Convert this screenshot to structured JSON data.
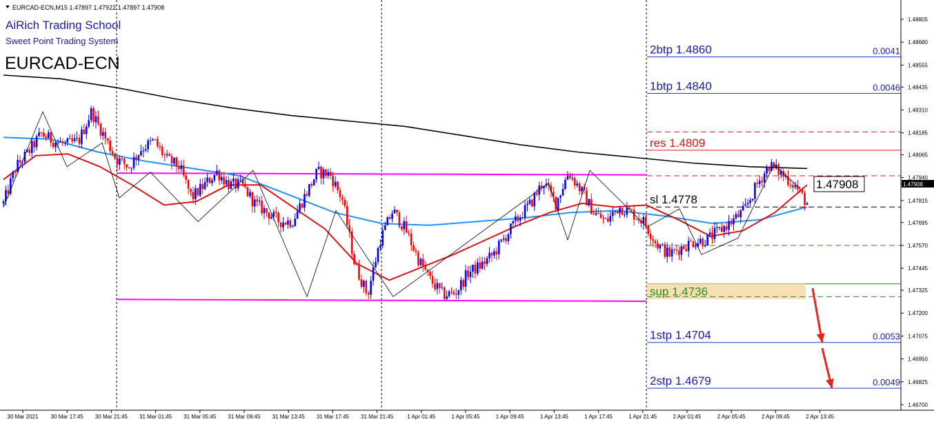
{
  "header": {
    "symbol_line": "EURCAD-ECN,M15  1.47897 1.47922 1.47897 1.47908",
    "school": "AiRich Trading School",
    "system": "Sweet Point Trading System",
    "instrument": "EURCAD-ECN"
  },
  "colors": {
    "candle_bull": "#0000ff",
    "candle_bear": "#ff0000",
    "ma_black": "#000000",
    "ma_blue": "#1e90ff",
    "ma_red": "#dd1111",
    "box": "#ff00ff",
    "target_line": "#1f3fbf",
    "res": "#dd1111",
    "sup_fill": "#f9dfb6",
    "sup_text": "#2e8b22",
    "arrow": "#e8231c"
  },
  "chart_data": {
    "type": "candlestick",
    "ylim": [
      1.467,
      1.4892
    ],
    "current_price": "1.47908",
    "y_ticks": [
      "1.48805",
      "1.48680",
      "1.48555",
      "1.48435",
      "1.48310",
      "1.48185",
      "1.48065",
      "1.47940",
      "1.47815",
      "1.47695",
      "1.47570",
      "1.47445",
      "1.47325",
      "1.47200",
      "1.47075",
      "1.46950",
      "1.46825",
      "1.46700"
    ],
    "x_ticks": [
      "30 Mar 2021",
      "30 Mar 17:45",
      "30 Mar 21:45",
      "31 Mar 01:45",
      "31 Mar 05:45",
      "31 Mar 09:45",
      "31 Mar 13:45",
      "31 Mar 17:45",
      "31 Mar 21:45",
      "1 Apr 01:45",
      "1 Apr 05:45",
      "1 Apr 09:45",
      "1 Apr 13:45",
      "1 Apr 17:45",
      "1 Apr 21:45",
      "2 Apr 01:45",
      "2 Apr 05:45",
      "2 Apr 09:45",
      "2 Apr 13:45"
    ],
    "price_path": [
      1.478,
      1.48,
      1.4808,
      1.4818,
      1.4814,
      1.4812,
      1.4814,
      1.483,
      1.4817,
      1.4804,
      1.48,
      1.481,
      1.4814,
      1.4804,
      1.48,
      1.4783,
      1.479,
      1.4797,
      1.479,
      1.479,
      1.478,
      1.4775,
      1.477,
      1.477,
      1.4784,
      1.4797,
      1.4796,
      1.4782,
      1.4746,
      1.473,
      1.476,
      1.4776,
      1.4766,
      1.475,
      1.4738,
      1.473,
      1.4731,
      1.4742,
      1.4746,
      1.4752,
      1.4762,
      1.4772,
      1.478,
      1.4792,
      1.478,
      1.4797,
      1.4787,
      1.4775,
      1.477,
      1.4778,
      1.4775,
      1.477,
      1.4758,
      1.4752,
      1.4756,
      1.4759,
      1.476,
      1.4765,
      1.477,
      1.4776,
      1.479,
      1.4801,
      1.4796,
      1.479,
      1.478
    ],
    "moving_averages": [
      {
        "name": "",
        "color": "#000000",
        "values": [
          1.485,
          1.4848,
          1.4843,
          1.4837,
          1.4832,
          1.4828,
          1.4825,
          1.4822,
          1.4817,
          1.4812,
          1.4808,
          1.4805,
          1.4802,
          1.48,
          1.4799
        ]
      },
      {
        "name": "",
        "color": "#1e90ff",
        "values": [
          1.4816,
          1.4815,
          1.4808,
          1.4803,
          1.4799,
          1.4795,
          1.4785,
          1.4775,
          1.4769,
          1.4768,
          1.477,
          1.4772,
          1.4775,
          1.4776,
          1.4773,
          1.4769,
          1.4771,
          1.4778
        ]
      },
      {
        "name": "",
        "color": "#dd1111",
        "values": [
          1.4793,
          1.4806,
          1.4807,
          1.48,
          1.479,
          1.4779,
          1.4781,
          1.479,
          1.479,
          1.4778,
          1.4766,
          1.4747,
          1.4738,
          1.4745,
          1.4752,
          1.476,
          1.4768,
          1.4775,
          1.478,
          1.4778,
          1.4779,
          1.4771,
          1.4762,
          1.4765,
          1.4775,
          1.479
        ]
      }
    ],
    "levels": [
      {
        "label": "2btp 1.4860",
        "value": 1.486,
        "style": "target",
        "offset": "0.0041"
      },
      {
        "label": "1btp 1.4840",
        "value": 1.484,
        "style": "target",
        "offset": "0.0046"
      },
      {
        "label": "",
        "value": 1.4819,
        "style": "res-dash"
      },
      {
        "label": "res 1.4809",
        "value": 1.4809,
        "style": "res"
      },
      {
        "label": "",
        "value": 1.4795,
        "style": "res-dash"
      },
      {
        "label": "sl 1.4778",
        "value": 1.4778,
        "style": "sl"
      },
      {
        "label": "",
        "value": 1.4757,
        "style": "green-dash"
      },
      {
        "label": "sup 1.4736",
        "value": 1.4736,
        "style": "sup"
      },
      {
        "label": "",
        "value": 1.4729,
        "style": "green-dash"
      },
      {
        "label": "1stp 1.4704",
        "value": 1.4704,
        "style": "target",
        "offset": "0.0053"
      },
      {
        "label": "2stp 1.4679",
        "value": 1.4679,
        "style": "target",
        "offset": "0.0049"
      }
    ]
  }
}
